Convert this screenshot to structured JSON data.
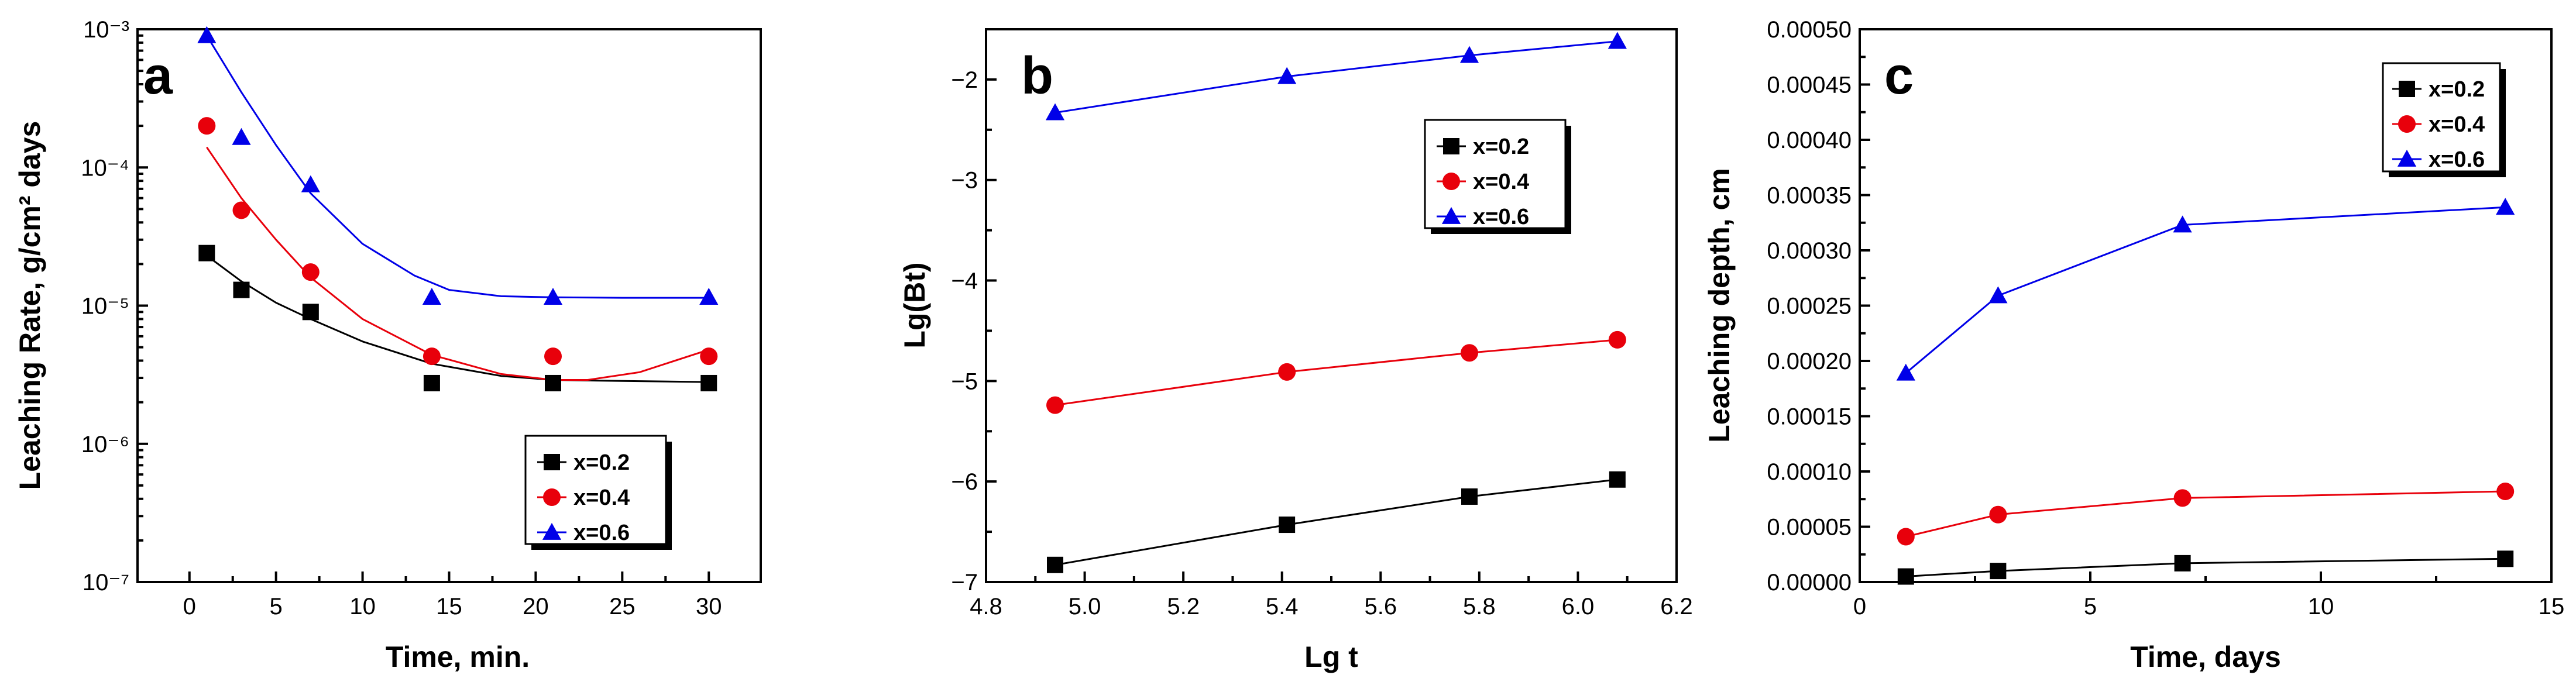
{
  "chart_data": [
    {
      "type": "scatter",
      "panel_label": "a",
      "xlabel": "Time, min.",
      "ylabel": "Leaching Rate, g/cm² days",
      "yscale": "log",
      "xlim": [
        -3,
        33
      ],
      "ylim": [
        1e-07,
        0.001
      ],
      "xticks": [
        0,
        5,
        10,
        15,
        20,
        25,
        30
      ],
      "xtick_labels": [
        "0",
        "5",
        "10",
        "15",
        "20",
        "25",
        "30"
      ],
      "yticks": [
        1e-07,
        1e-06,
        1e-05,
        0.0001,
        0.001
      ],
      "ytick_labels": [
        "10⁻⁷",
        "10⁻⁶",
        "10⁻⁵",
        "10⁻⁴",
        "10⁻³"
      ],
      "legend_position": "bottom-right",
      "series": [
        {
          "name": "x=0.2",
          "marker": "square",
          "color": "#000000",
          "x": [
            1,
            3,
            7,
            14,
            21,
            30
          ],
          "y": [
            2.4e-05,
            1.3e-05,
            9e-06,
            2.75e-06,
            2.75e-06,
            2.75e-06
          ],
          "fit": {
            "x": [
              1,
              3,
              5,
              7,
              10,
              14,
              18,
              21,
              25,
              30
            ],
            "y": [
              2.3e-05,
              1.5e-05,
              1.05e-05,
              8e-06,
              5.5e-06,
              3.8e-06,
              3.1e-06,
              2.9e-06,
              2.85e-06,
              2.8e-06
            ]
          }
        },
        {
          "name": "x=0.4",
          "marker": "circle",
          "color": "#e8000b",
          "x": [
            1,
            3,
            7,
            14,
            21,
            30
          ],
          "y": [
            0.0002,
            4.9e-05,
            1.75e-05,
            4.3e-06,
            4.3e-06,
            4.3e-06
          ],
          "fit": {
            "x": [
              1,
              3,
              5,
              7,
              10,
              14,
              18,
              21,
              23,
              26,
              30
            ],
            "y": [
              0.00014,
              6e-05,
              3e-05,
              1.6e-05,
              8e-06,
              4.4e-06,
              3.2e-06,
              2.9e-06,
              2.9e-06,
              3.3e-06,
              4.8e-06
            ]
          }
        },
        {
          "name": "x=0.6",
          "marker": "triangle",
          "color": "#0000e8",
          "x": [
            1,
            3,
            7,
            14,
            21,
            30
          ],
          "y": [
            0.0009,
            0.000165,
            7.5e-05,
            1.15e-05,
            1.15e-05,
            1.15e-05
          ],
          "fit": {
            "x": [
              1,
              3,
              5,
              7,
              10,
              13,
              15,
              18,
              21,
              25,
              30
            ],
            "y": [
              0.0009,
              0.00035,
              0.000145,
              6.5e-05,
              2.8e-05,
              1.65e-05,
              1.3e-05,
              1.17e-05,
              1.15e-05,
              1.14e-05,
              1.14e-05
            ]
          }
        }
      ]
    },
    {
      "type": "line",
      "panel_label": "b",
      "xlabel": "Lg t",
      "ylabel": "Lg(Bt)",
      "yscale": "linear",
      "xlim": [
        4.8,
        6.2
      ],
      "ylim": [
        -7,
        -1.5
      ],
      "xticks": [
        4.8,
        5.0,
        5.2,
        5.4,
        5.6,
        5.8,
        6.0,
        6.2
      ],
      "xtick_labels": [
        "4.8",
        "5.0",
        "5.2",
        "5.4",
        "5.6",
        "5.8",
        "6.0",
        "6.2"
      ],
      "yticks": [
        -7,
        -6,
        -5,
        -4,
        -3,
        -2
      ],
      "ytick_labels": [
        "−7",
        "−6",
        "−5",
        "−4",
        "−3",
        "−2"
      ],
      "legend_position": "top-right",
      "series": [
        {
          "name": "x=0.2",
          "marker": "square",
          "color": "#000000",
          "x": [
            4.94,
            5.41,
            5.78,
            6.08
          ],
          "y": [
            -6.83,
            -6.43,
            -6.15,
            -5.98
          ]
        },
        {
          "name": "x=0.4",
          "marker": "circle",
          "color": "#e8000b",
          "x": [
            4.94,
            5.41,
            5.78,
            6.08
          ],
          "y": [
            -5.24,
            -4.91,
            -4.72,
            -4.59
          ]
        },
        {
          "name": "x=0.6",
          "marker": "triangle",
          "color": "#0000e8",
          "x": [
            4.94,
            5.41,
            5.78,
            6.08
          ],
          "y": [
            -2.33,
            -1.97,
            -1.76,
            -1.62
          ]
        }
      ]
    },
    {
      "type": "line",
      "panel_label": "c",
      "xlabel": "Time, days",
      "ylabel": "Leaching depth, cm",
      "yscale": "linear",
      "xlim": [
        0,
        15
      ],
      "ylim": [
        0,
        0.0005
      ],
      "xticks": [
        0,
        5,
        10,
        15
      ],
      "xtick_labels": [
        "0",
        "5",
        "10",
        "15"
      ],
      "yticks": [
        0,
        5e-05,
        0.0001,
        0.00015,
        0.0002,
        0.00025,
        0.0003,
        0.00035,
        0.0004,
        0.00045,
        0.0005
      ],
      "ytick_labels": [
        "0.00000",
        "0.00005",
        "0.00010",
        "0.00015",
        "0.00020",
        "0.00025",
        "0.00030",
        "0.00035",
        "0.00040",
        "0.00045",
        "0.00050"
      ],
      "legend_position": "top-right",
      "series": [
        {
          "name": "x=0.2",
          "marker": "square",
          "color": "#000000",
          "x": [
            1,
            3,
            7,
            14
          ],
          "y": [
            5e-06,
            1e-05,
            1.7e-05,
            2.1e-05
          ]
        },
        {
          "name": "x=0.4",
          "marker": "circle",
          "color": "#e8000b",
          "x": [
            1,
            3,
            7,
            14
          ],
          "y": [
            4.1e-05,
            6.1e-05,
            7.6e-05,
            8.2e-05
          ]
        },
        {
          "name": "x=0.6",
          "marker": "triangle",
          "color": "#0000e8",
          "x": [
            1,
            3,
            7,
            14
          ],
          "y": [
            0.000189,
            0.000259,
            0.000323,
            0.000339
          ]
        }
      ]
    }
  ]
}
